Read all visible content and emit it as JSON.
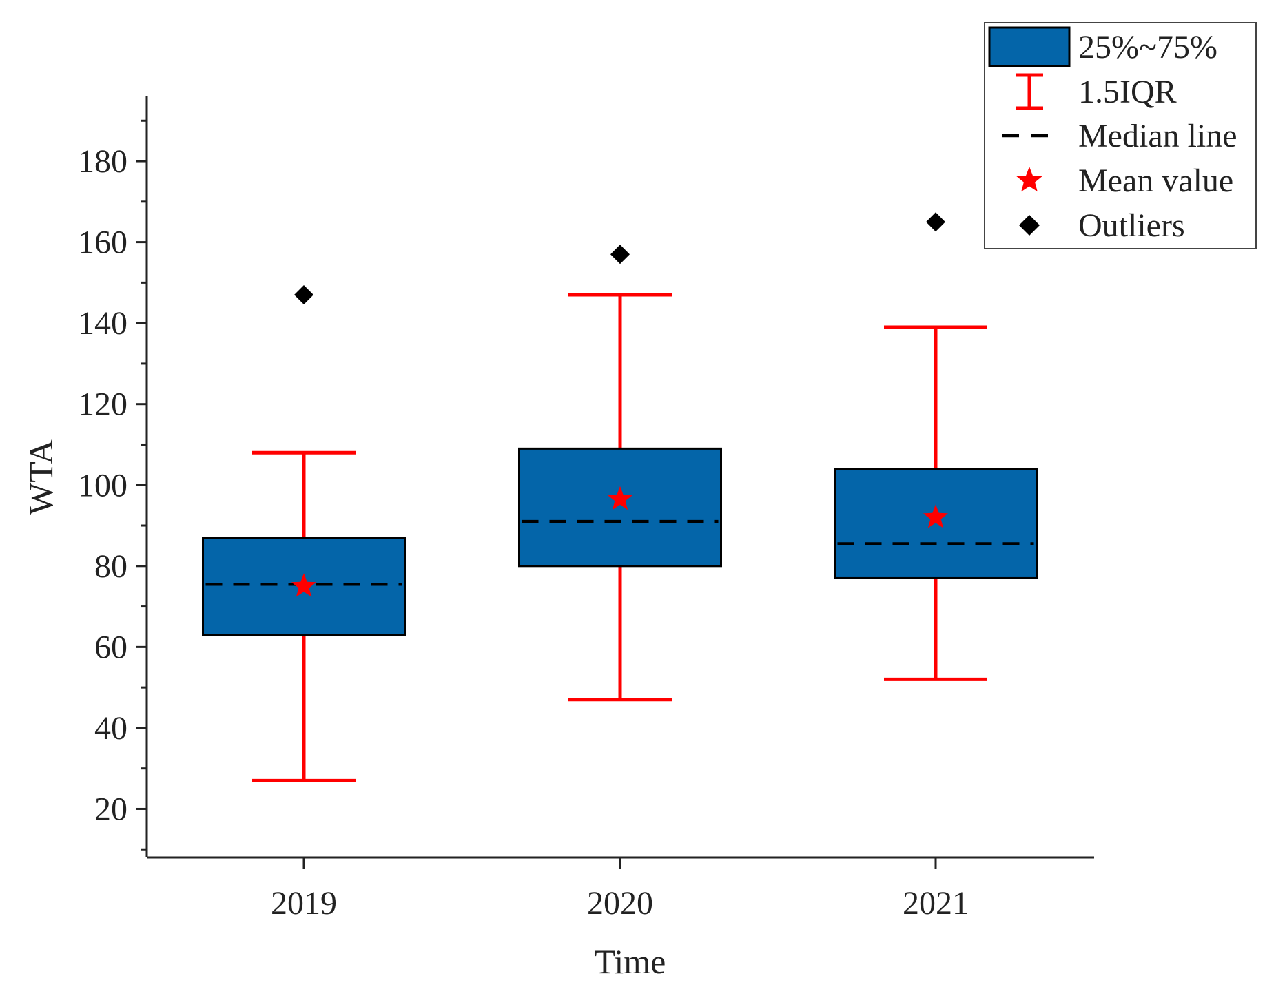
{
  "chart_data": {
    "type": "box",
    "title": "",
    "xlabel": "Time",
    "ylabel": "WTA",
    "ylim": [
      8,
      196
    ],
    "yticks": [
      20,
      40,
      60,
      80,
      100,
      120,
      140,
      160,
      180
    ],
    "yminor_step": 10,
    "categories": [
      "2019",
      "2020",
      "2021"
    ],
    "boxes": [
      {
        "category": "2019",
        "whisker_low": 27,
        "q1": 63,
        "median": 75.5,
        "q3": 87,
        "whisker_high": 108,
        "mean": 75,
        "outliers": [
          147
        ]
      },
      {
        "category": "2020",
        "whisker_low": 47,
        "q1": 80,
        "median": 91,
        "q3": 109,
        "whisker_high": 147,
        "mean": 96.5,
        "outliers": [
          157
        ]
      },
      {
        "category": "2021",
        "whisker_low": 52,
        "q1": 77,
        "median": 85.5,
        "q3": 104,
        "whisker_high": 139,
        "mean": 92,
        "outliers": [
          165
        ]
      }
    ],
    "legend": {
      "position": "top-right",
      "entries": [
        {
          "key": "box",
          "label": "25%~75%"
        },
        {
          "key": "whisker",
          "label": "1.5IQR"
        },
        {
          "key": "median",
          "label": "Median line"
        },
        {
          "key": "mean",
          "label": "Mean value"
        },
        {
          "key": "outlier",
          "label": "Outliers"
        }
      ]
    },
    "colors": {
      "box_fill": "#0465A9",
      "box_stroke": "#000000",
      "whisker": "#FF0000",
      "median": "#000000",
      "mean": "#FF0000",
      "outlier": "#000000",
      "axis": "#222222"
    }
  }
}
